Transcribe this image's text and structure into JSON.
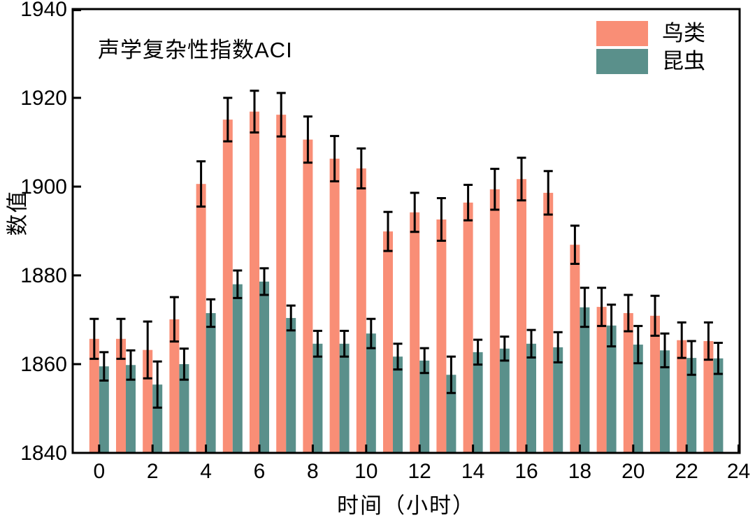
{
  "chart_data": {
    "type": "bar",
    "title": "声学复杂性指数ACI",
    "xlabel": "时间（小时）",
    "ylabel": "数值",
    "categories": [
      0,
      1,
      2,
      3,
      4,
      5,
      6,
      7,
      8,
      9,
      10,
      11,
      12,
      13,
      14,
      15,
      16,
      17,
      18,
      19,
      20,
      21,
      22,
      23
    ],
    "series": [
      {
        "name": "鸟类",
        "color": "#F98E76",
        "values": [
          1865.7,
          1865.7,
          1863.2,
          1870.1,
          1900.6,
          1915.1,
          1916.9,
          1916.2,
          1910.6,
          1906.3,
          1904.1,
          1889.9,
          1894.2,
          1892.6,
          1896.4,
          1899.4,
          1901.7,
          1898.6,
          1886.9,
          1872.9,
          1871.5,
          1870.9,
          1865.4,
          1865.2
        ],
        "errors": [
          4.5,
          4.5,
          6.4,
          5.0,
          5.1,
          4.9,
          4.7,
          4.9,
          5.2,
          5.1,
          4.5,
          4.4,
          4.4,
          4.8,
          4.0,
          4.6,
          4.8,
          4.9,
          4.3,
          4.3,
          4.1,
          4.5,
          4.0,
          4.2
        ]
      },
      {
        "name": "昆虫",
        "color": "#5A908B",
        "values": [
          1859.5,
          1859.8,
          1855.4,
          1860.0,
          1871.5,
          1878.0,
          1878.6,
          1870.4,
          1864.6,
          1864.6,
          1866.9,
          1861.7,
          1860.8,
          1857.6,
          1862.7,
          1863.5,
          1864.6,
          1863.8,
          1872.8,
          1868.7,
          1864.4,
          1863.1,
          1861.4,
          1861.3
        ],
        "errors": [
          3.2,
          3.3,
          5.2,
          3.5,
          3.1,
          3.1,
          3.0,
          2.8,
          2.9,
          2.9,
          3.3,
          2.9,
          2.8,
          4.1,
          2.8,
          2.7,
          3.1,
          3.4,
          4.4,
          4.7,
          4.2,
          3.8,
          3.8,
          3.5
        ]
      }
    ],
    "x_ticks": [
      0,
      2,
      4,
      6,
      8,
      10,
      12,
      14,
      16,
      18,
      20,
      22,
      24
    ],
    "y_ticks": [
      1840,
      1860,
      1880,
      1900,
      1920,
      1940
    ],
    "xlim": [
      -1,
      24
    ],
    "ylim": [
      1840,
      1940
    ],
    "grid": false,
    "legend_position": "upper right",
    "error_bar_color": "#000000",
    "axis_color": "#000000"
  }
}
